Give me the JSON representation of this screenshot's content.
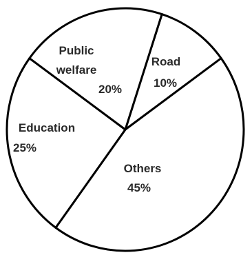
{
  "chart_data": {
    "type": "pie",
    "slices": [
      {
        "label_lines": [
          "Road"
        ],
        "value_text": "10%",
        "value": 10
      },
      {
        "label_lines": [
          "Others"
        ],
        "value_text": "45%",
        "value": 45
      },
      {
        "label_lines": [
          "Education"
        ],
        "value_text": "25%",
        "value": 25
      },
      {
        "label_lines": [
          "Public",
          "welfare"
        ],
        "value_text": "20%",
        "value": 20
      }
    ],
    "title": "",
    "legend": "none"
  }
}
